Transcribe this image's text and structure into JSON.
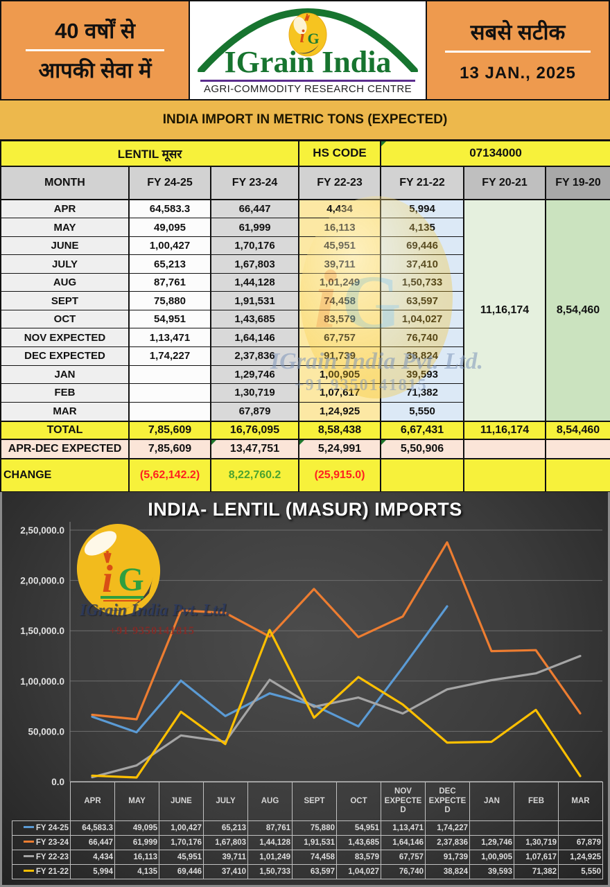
{
  "header": {
    "left_line1": "40 वर्षों से",
    "left_line2": "आपकी सेवा में",
    "brand": "IGrain India",
    "brand_sub": "AGRI-COMMODITY RESEARCH CENTRE",
    "logo_monogram_i": "i",
    "logo_monogram_g": "G",
    "right_line1": "सबसे सटीक",
    "date": "13 JAN., 2025"
  },
  "banner": {
    "title": "INDIA IMPORT IN METRIC TONS (EXPECTED)"
  },
  "watermark": {
    "company": "IGrain India Pvt. Ltd.",
    "phone": "+91 9350141815"
  },
  "main_table": {
    "commodity": "LENTIL मूसर",
    "hs_code_label": "HS CODE",
    "hs_code": "07134000",
    "columns": [
      "MONTH",
      "FY 24-25",
      "FY 23-24",
      "FY 22-23",
      "FY 21-22",
      "FY 20-21",
      "FY 19-20"
    ],
    "rows": [
      {
        "month": "APR",
        "fy2425": "64,583.3",
        "fy2324": "66,447",
        "fy2223": "4,434",
        "fy2122": "5,994"
      },
      {
        "month": "MAY",
        "fy2425": "49,095",
        "fy2324": "61,999",
        "fy2223": "16,113",
        "fy2122": "4,135"
      },
      {
        "month": "JUNE",
        "fy2425": "1,00,427",
        "fy2324": "1,70,176",
        "fy2223": "45,951",
        "fy2122": "69,446"
      },
      {
        "month": "JULY",
        "fy2425": "65,213",
        "fy2324": "1,67,803",
        "fy2223": "39,711",
        "fy2122": "37,410"
      },
      {
        "month": "AUG",
        "fy2425": "87,761",
        "fy2324": "1,44,128",
        "fy2223": "1,01,249",
        "fy2122": "1,50,733"
      },
      {
        "month": "SEPT",
        "fy2425": "75,880",
        "fy2324": "1,91,531",
        "fy2223": "74,458",
        "fy2122": "63,597"
      },
      {
        "month": "OCT",
        "fy2425": "54,951",
        "fy2324": "1,43,685",
        "fy2223": "83,579",
        "fy2122": "1,04,027"
      },
      {
        "month": "NOV EXPECTED",
        "fy2425": "1,13,471",
        "fy2324": "1,64,146",
        "fy2223": "67,757",
        "fy2122": "76,740"
      },
      {
        "month": "DEC  EXPECTED",
        "fy2425": "1,74,227",
        "fy2324": "2,37,836",
        "fy2223": "91,739",
        "fy2122": "38,824"
      },
      {
        "month": "JAN",
        "fy2425": "",
        "fy2324": "1,29,746",
        "fy2223": "1,00,905",
        "fy2122": "39,593"
      },
      {
        "month": "FEB",
        "fy2425": "",
        "fy2324": "1,30,719",
        "fy2223": "1,07,617",
        "fy2122": "71,382"
      },
      {
        "month": "MAR",
        "fy2425": "",
        "fy2324": "67,879",
        "fy2223": "1,24,925",
        "fy2122": "5,550"
      }
    ],
    "fy2021_merged": "11,16,174",
    "fy1920_merged": "8,54,460",
    "total": {
      "label": "TOTAL",
      "fy2425": "7,85,609",
      "fy2324": "16,76,095",
      "fy2223": "8,58,438",
      "fy2122": "6,67,431",
      "fy2021": "11,16,174",
      "fy1920": "8,54,460"
    },
    "apr_dec": {
      "label": "APR-DEC EXPECTED",
      "fy2425": "7,85,609",
      "fy2324": "13,47,751",
      "fy2223": "5,24,991",
      "fy2122": "5,50,906"
    },
    "change": {
      "label": "CHANGE",
      "fy2425": "(5,62,142.2)",
      "fy2324": "8,22,760.2",
      "fy2223": "(25,915.0)",
      "fy2425_color": "#FF2020",
      "fy2324_color": "#4CA32F",
      "fy2223_color": "#FF2020"
    }
  },
  "chart_data": {
    "type": "line",
    "title": "INDIA- LENTIL (MASUR) IMPORTS",
    "categories": [
      "APR",
      "MAY",
      "JUNE",
      "JULY",
      "AUG",
      "SEPT",
      "OCT",
      "NOV EXPECTED",
      "DEC EXPECTED",
      "JAN",
      "FEB",
      "MAR"
    ],
    "ylim": [
      0,
      250000
    ],
    "y_tick_step": 50000,
    "y_tick_labels": [
      "0.0",
      "50,000.0",
      "1,00,000.0",
      "1,50,000.0",
      "2,00,000.0",
      "2,50,000.0"
    ],
    "grid": true,
    "legend_position": "data-table-left",
    "series": [
      {
        "name": "FY 24-25",
        "color": "#5B9BD5",
        "values": [
          64583.3,
          49095,
          100427,
          65213,
          87761,
          75880,
          54951,
          113471,
          174227
        ],
        "labels": [
          "64,583.3",
          "49,095",
          "1,00,427",
          "65,213",
          "87,761",
          "75,880",
          "54,951",
          "1,13,471",
          "1,74,227",
          "",
          "",
          ""
        ]
      },
      {
        "name": "FY 23-24",
        "color": "#ED7D31",
        "values": [
          66447,
          61999,
          170176,
          167803,
          144128,
          191531,
          143685,
          164146,
          237836,
          129746,
          130719,
          67879
        ],
        "labels": [
          "66,447",
          "61,999",
          "1,70,176",
          "1,67,803",
          "1,44,128",
          "1,91,531",
          "1,43,685",
          "1,64,146",
          "2,37,836",
          "1,29,746",
          "1,30,719",
          "67,879"
        ]
      },
      {
        "name": "FY 22-23",
        "color": "#A5A5A5",
        "values": [
          4434,
          16113,
          45951,
          39711,
          101249,
          74458,
          83579,
          67757,
          91739,
          100905,
          107617,
          124925
        ],
        "labels": [
          "4,434",
          "16,113",
          "45,951",
          "39,711",
          "1,01,249",
          "74,458",
          "83,579",
          "67,757",
          "91,739",
          "1,00,905",
          "1,07,617",
          "1,24,925"
        ]
      },
      {
        "name": "FY 21-22",
        "color": "#FFC000",
        "values": [
          5994,
          4135,
          69446,
          37410,
          150733,
          63597,
          104027,
          76740,
          38824,
          39593,
          71382,
          5550
        ],
        "labels": [
          "5,994",
          "4,135",
          "69,446",
          "37,410",
          "1,50,733",
          "63,597",
          "1,04,027",
          "76,740",
          "38,824",
          "39,593",
          "71,382",
          "5,550"
        ]
      }
    ]
  },
  "colors": {
    "header_orange": "#EE9A4E",
    "banner_gold": "#EDB84C",
    "row_yellow": "#F7F13B",
    "aprdec_peach": "#FBE5D8",
    "brand_green": "#17742F",
    "brand_rule_purple": "#5B2D8E",
    "chart_bg": "#3b3b3b"
  }
}
